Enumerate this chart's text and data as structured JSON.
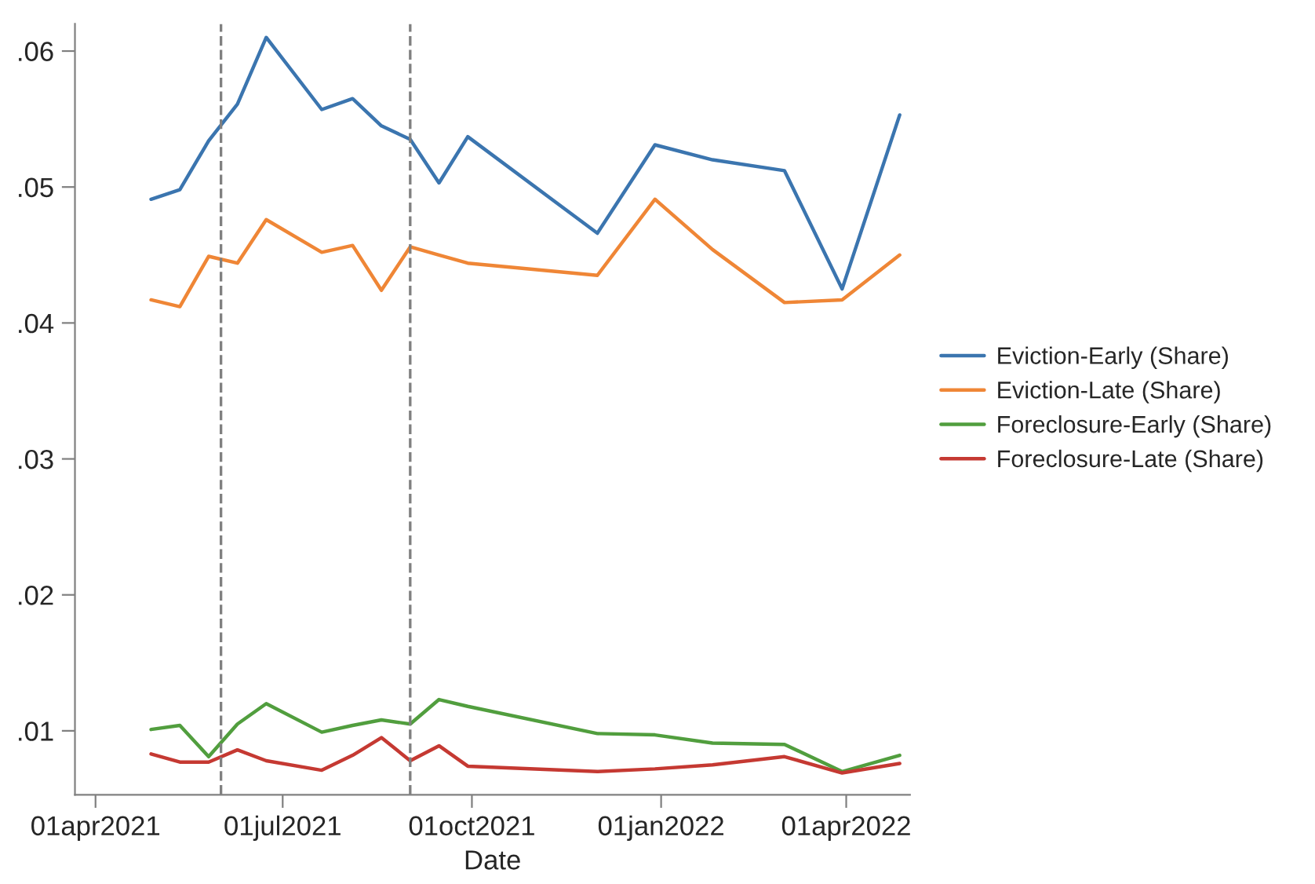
{
  "chart_data": {
    "type": "line",
    "xlabel": "Date",
    "x": [
      "2021-04-28",
      "2021-05-12",
      "2021-05-26",
      "2021-06-09",
      "2021-06-23",
      "2021-07-20",
      "2021-08-04",
      "2021-08-18",
      "2021-09-01",
      "2021-09-15",
      "2021-09-29",
      "2021-12-01",
      "2021-12-29",
      "2022-01-26",
      "2022-03-02",
      "2022-03-30",
      "2022-04-27"
    ],
    "series": [
      {
        "name": "Eviction-Early (Share)",
        "color": "#3b75af",
        "values": [
          0.0491,
          0.0498,
          0.0534,
          0.0561,
          0.061,
          0.0557,
          0.0565,
          0.0545,
          0.0535,
          0.0503,
          0.0537,
          0.0466,
          0.0531,
          0.052,
          0.0512,
          0.0425,
          0.0553
        ]
      },
      {
        "name": "Eviction-Late (Share)",
        "color": "#ef8636",
        "values": [
          0.0417,
          0.0412,
          0.0449,
          0.0444,
          0.0476,
          0.0452,
          0.0457,
          0.0424,
          0.0456,
          0.045,
          0.0444,
          0.0435,
          0.0491,
          0.0454,
          0.0415,
          0.0417,
          0.045
        ]
      },
      {
        "name": "Foreclosure-Early (Share)",
        "color": "#519e3e",
        "values": [
          0.0101,
          0.0104,
          0.0081,
          0.0105,
          0.012,
          0.0099,
          0.0104,
          0.0108,
          0.0105,
          0.0123,
          0.0118,
          0.0098,
          0.0097,
          0.0091,
          0.009,
          0.007,
          0.0082
        ]
      },
      {
        "name": "Foreclosure-Late (Share)",
        "color": "#c53932",
        "values": [
          0.0083,
          0.0077,
          0.0077,
          0.0086,
          0.0078,
          0.0071,
          0.0082,
          0.0095,
          0.0078,
          0.0089,
          0.0074,
          0.007,
          0.0072,
          0.0075,
          0.0081,
          0.0069,
          0.0076
        ]
      }
    ],
    "xlim": [
      "2021-03-22",
      "2022-05-02"
    ],
    "xticks": [
      {
        "value": "2021-04-01",
        "label": "01apr2021"
      },
      {
        "value": "2021-07-01",
        "label": "01jul2021"
      },
      {
        "value": "2021-10-01",
        "label": "01oct2021"
      },
      {
        "value": "2022-01-01",
        "label": "01jan2022"
      },
      {
        "value": "2022-04-01",
        "label": "01apr2022"
      }
    ],
    "ylim": [
      0.0053,
      0.062
    ],
    "yticks": [
      {
        "value": 0.01,
        "label": ".01"
      },
      {
        "value": 0.02,
        "label": ".02"
      },
      {
        "value": 0.03,
        "label": ".03"
      },
      {
        "value": 0.04,
        "label": ".04"
      },
      {
        "value": 0.05,
        "label": ".05"
      },
      {
        "value": 0.06,
        "label": ".06"
      }
    ],
    "ref_lines": [
      {
        "axis": "x",
        "value": "2021-06-01",
        "color": "#808080",
        "line_style": "dashed"
      },
      {
        "axis": "x",
        "value": "2021-09-01",
        "color": "#808080",
        "line_style": "dashed"
      }
    ],
    "grid": false,
    "legend": "right",
    "line_style": "solid",
    "marker": "none"
  }
}
